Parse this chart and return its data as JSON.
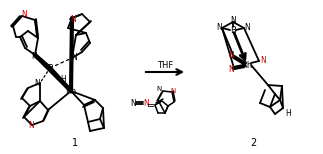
{
  "bg_color": "#ffffff",
  "arrow_text": "THF",
  "label1": "1",
  "label2": "2",
  "fig_width": 3.23,
  "fig_height": 1.54,
  "dpi": 100,
  "black": "#000000",
  "red": "#cc0000"
}
